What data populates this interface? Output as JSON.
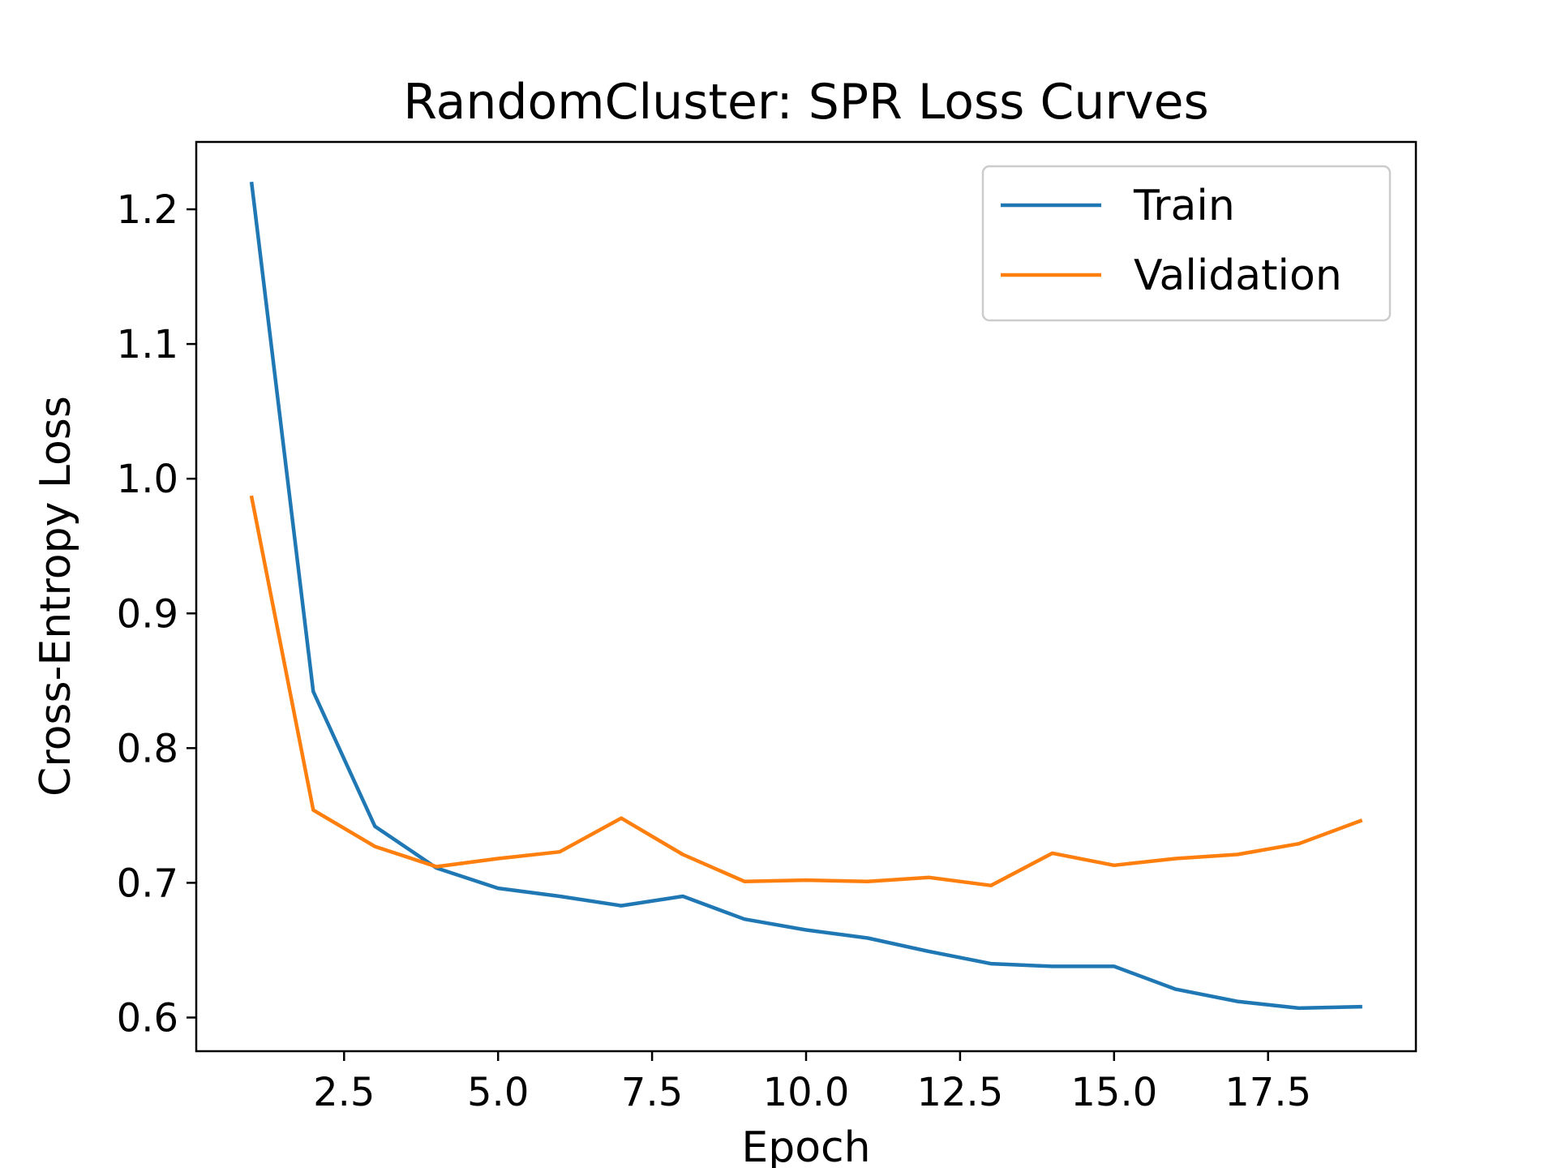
{
  "chart_data": {
    "type": "line",
    "title": "RandomCluster: SPR Loss Curves",
    "xlabel": "Epoch",
    "ylabel": "Cross-Entropy Loss",
    "xlim": [
      0.1,
      19.9
    ],
    "ylim": [
      0.575,
      1.25
    ],
    "xticks": [
      2.5,
      5.0,
      7.5,
      10.0,
      12.5,
      15.0,
      17.5
    ],
    "xtick_labels": [
      "2.5",
      "5.0",
      "7.5",
      "10.0",
      "12.5",
      "15.0",
      "17.5"
    ],
    "yticks": [
      0.6,
      0.7,
      0.8,
      0.9,
      1.0,
      1.1,
      1.2
    ],
    "ytick_labels": [
      "0.6",
      "0.7",
      "0.8",
      "0.9",
      "1.0",
      "1.1",
      "1.2"
    ],
    "grid": false,
    "legend_position": "upper right",
    "x": [
      1,
      2,
      3,
      4,
      5,
      6,
      7,
      8,
      9,
      10,
      11,
      12,
      13,
      14,
      15,
      16,
      17,
      18,
      19
    ],
    "series": [
      {
        "name": "Train",
        "color": "#1f77b4",
        "values": [
          1.219,
          0.842,
          0.742,
          0.711,
          0.696,
          0.69,
          0.683,
          0.69,
          0.673,
          0.665,
          0.659,
          0.649,
          0.64,
          0.638,
          0.638,
          0.621,
          0.612,
          0.607,
          0.608
        ]
      },
      {
        "name": "Validation",
        "color": "#ff7f0e",
        "values": [
          0.986,
          0.754,
          0.727,
          0.712,
          0.718,
          0.723,
          0.748,
          0.721,
          0.701,
          0.702,
          0.701,
          0.704,
          0.698,
          0.722,
          0.713,
          0.718,
          0.721,
          0.729,
          0.746
        ]
      }
    ]
  }
}
